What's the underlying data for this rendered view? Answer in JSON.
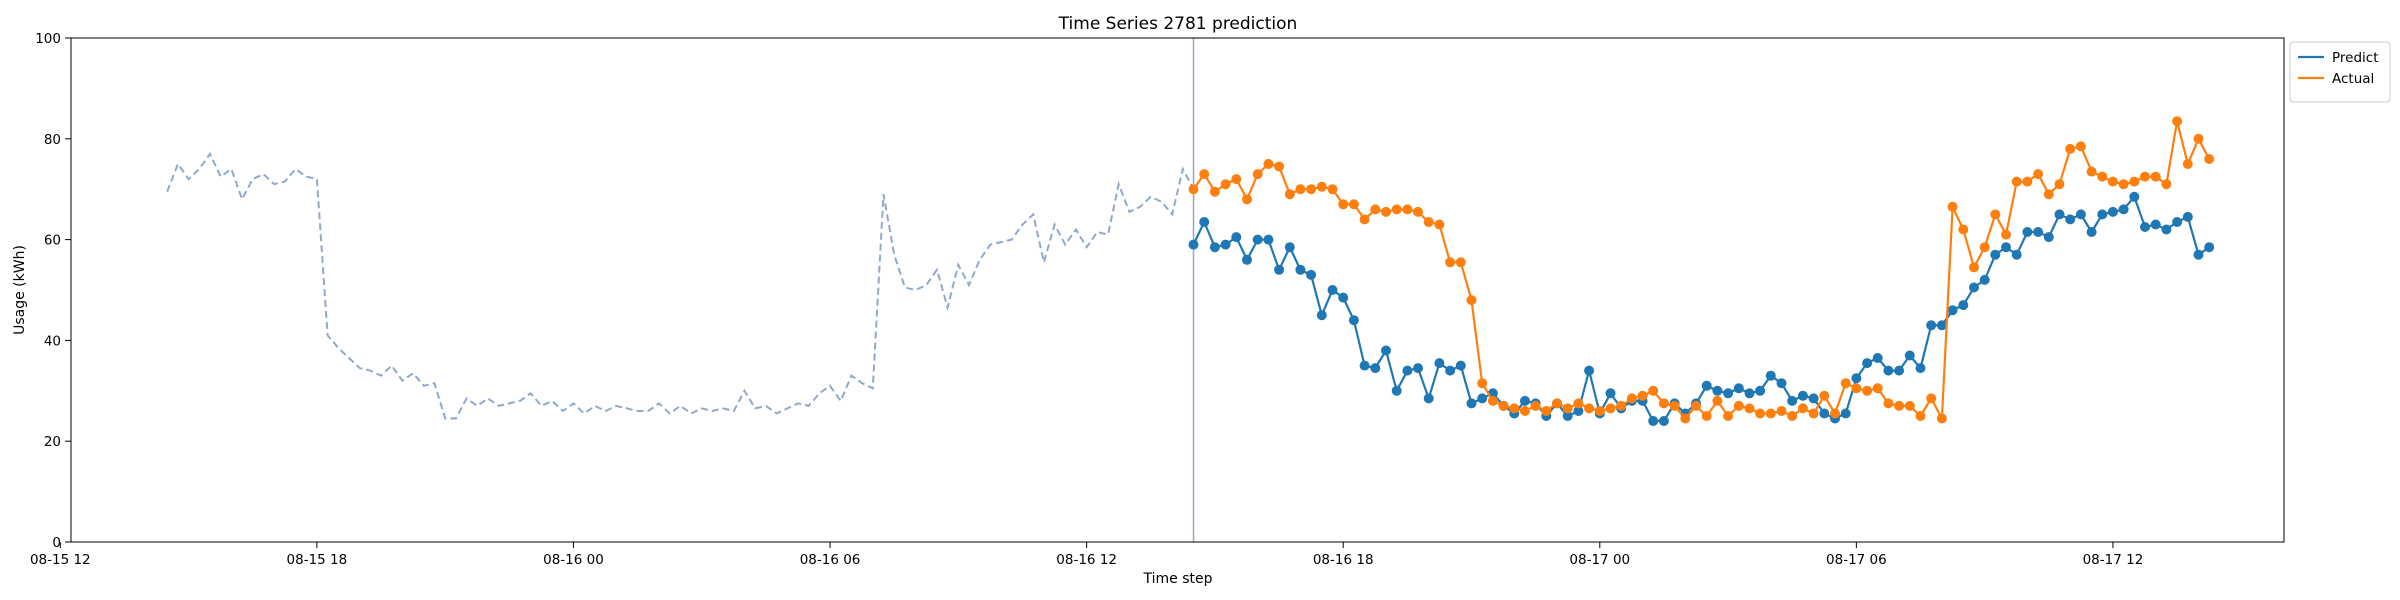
{
  "chart_data": {
    "type": "line",
    "title": "Time Series 2781 prediction",
    "xlabel": "Time step",
    "ylabel": "Usage (kWh)",
    "ylim": [
      0,
      100
    ],
    "yticks": [
      0,
      20,
      40,
      60,
      80,
      100
    ],
    "xlim": [
      "08-15 12:15",
      "08-17 16:00"
    ],
    "xticks": [
      "08-15 12",
      "08-15 18",
      "08-16 00",
      "08-16 06",
      "08-16 12",
      "08-16 18",
      "08-17 00",
      "08-17 06",
      "08-17 12"
    ],
    "x_interval_minutes": 15,
    "grid": false,
    "legend_position": "top-right (outside plot)",
    "history": {
      "start": "08-15 14:30",
      "color": "#8fa9cc",
      "style": "dashed",
      "values": [
        69.5,
        75,
        72,
        74,
        77,
        72.5,
        74,
        68,
        72,
        73,
        71,
        71.5,
        74,
        72.5,
        72,
        41,
        38.5,
        36.5,
        34.5,
        34,
        33,
        35,
        32,
        33.5,
        31,
        31.5,
        24.5,
        24.5,
        28.5,
        27,
        28.5,
        27,
        27.5,
        28,
        29.5,
        27,
        28,
        26,
        27.5,
        25.5,
        27,
        26,
        27,
        26.5,
        26,
        26,
        27.5,
        25.5,
        27,
        25.5,
        26.5,
        26,
        26.5,
        26,
        30,
        26.5,
        27,
        25.5,
        26.5,
        27.5,
        27,
        29.5,
        31,
        28,
        33,
        31.5,
        30.5,
        69,
        57,
        50.5,
        50,
        51,
        54,
        46.5,
        55,
        51,
        56,
        59,
        59.5,
        60,
        63,
        65,
        55.5,
        63,
        59,
        62,
        58.5,
        61.5,
        61,
        71,
        65.5,
        66.5,
        68.5,
        67.5,
        65,
        74,
        70
      ]
    },
    "forecast_start": "08-16 14:30",
    "split_line_color": "#8fa9cc",
    "series": [
      {
        "name": "Predict",
        "color": "#1f77b4",
        "start": "08-16 14:30",
        "values": [
          59,
          63.5,
          58.5,
          59,
          60.5,
          56,
          60,
          60,
          54,
          58.5,
          54,
          53,
          45,
          50,
          48.5,
          44,
          35,
          34.5,
          38,
          30,
          34,
          34.5,
          28.5,
          35.5,
          34,
          35,
          27.5,
          28.5,
          29.5,
          27,
          25.5,
          28,
          27.5,
          25,
          27.5,
          25,
          26,
          34,
          25.5,
          29.5,
          26.5,
          28,
          28,
          24,
          24,
          27.5,
          25.5,
          27.5,
          31,
          30,
          29.5,
          30.5,
          29.5,
          30,
          33,
          31.5,
          28,
          29,
          28.5,
          25.5,
          24.5,
          25.5,
          32.5,
          35.5,
          36.5,
          34,
          34,
          37,
          34.5,
          43,
          43,
          46,
          47,
          50.5,
          52,
          57,
          58.5,
          57,
          61.5,
          61.5,
          60.5,
          65,
          64,
          65,
          61.5,
          65,
          65.5,
          66,
          68.5,
          62.5,
          63,
          62,
          63.5,
          64.5,
          57,
          58.5
        ]
      },
      {
        "name": "Actual",
        "color": "#ff7f0e",
        "start": "08-16 14:30",
        "values": [
          70,
          73,
          69.5,
          71,
          72,
          68,
          73,
          75,
          74.5,
          69,
          70,
          70,
          70.5,
          70,
          67,
          67,
          64,
          66,
          65.5,
          66,
          66,
          65.5,
          63.5,
          63,
          55.5,
          55.5,
          48,
          31.5,
          28,
          27,
          26.5,
          26,
          27,
          26,
          27.5,
          26.5,
          27.5,
          26.5,
          26,
          26.5,
          27,
          28.5,
          29,
          30,
          27.5,
          27,
          24.5,
          27,
          25,
          28,
          25,
          27,
          26.5,
          25.5,
          25.5,
          26,
          25,
          26.5,
          25.5,
          29,
          25.5,
          31.5,
          30.5,
          30,
          30.5,
          27.5,
          27,
          27,
          25,
          28.5,
          24.5,
          66.5,
          62,
          54.5,
          58.5,
          65,
          61,
          71.5,
          71.5,
          73,
          69,
          71,
          78,
          78.5,
          73.5,
          72.5,
          71.5,
          71,
          71.5,
          72.5,
          72.5,
          71,
          83.5,
          75,
          80,
          76
        ]
      }
    ]
  }
}
